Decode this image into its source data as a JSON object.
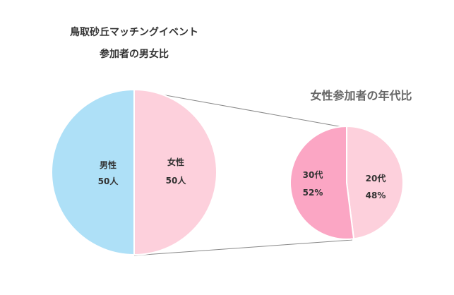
{
  "chart_data": [
    {
      "type": "pie",
      "title_lines": [
        "鳥取砂丘マッチングイベント",
        "参加者の男女比"
      ],
      "slices": [
        {
          "label": "男性",
          "value": 50,
          "value_label": "50人",
          "color": "#aee0f7"
        },
        {
          "label": "女性",
          "value": 50,
          "value_label": "50人",
          "color": "#fdd0dc"
        }
      ]
    },
    {
      "type": "pie",
      "title": "女性参加者の年代比",
      "slices": [
        {
          "label": "20代",
          "value": 48,
          "value_label": "48%",
          "color": "#fdd0dc"
        },
        {
          "label": "30代",
          "value": 52,
          "value_label": "52%",
          "color": "#fba6c4"
        }
      ]
    }
  ]
}
